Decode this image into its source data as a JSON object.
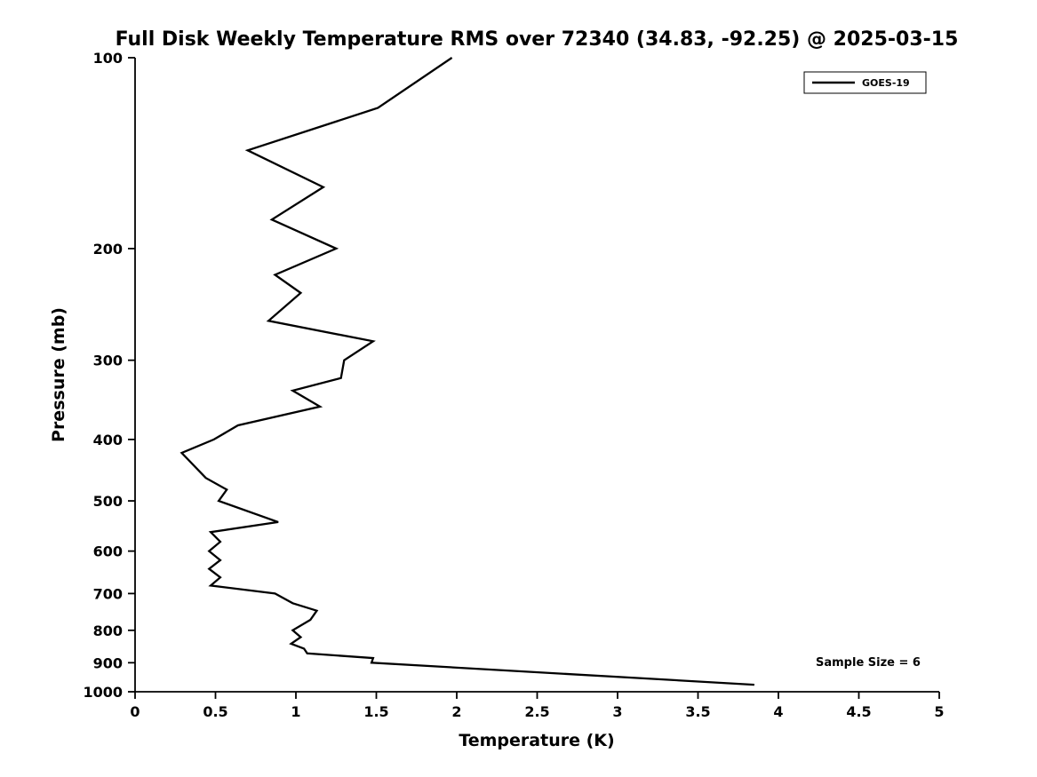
{
  "chart_data": {
    "type": "line",
    "title": "Full Disk Weekly Temperature RMS over 72340 (34.83, -92.25) @ 2025-03-15",
    "xlabel": "Temperature (K)",
    "ylabel": "Pressure (mb)",
    "xlim": [
      0,
      5
    ],
    "ylim": [
      100,
      1000
    ],
    "y_scale": "log",
    "y_inverted": true,
    "grid": false,
    "x_ticks": [
      0,
      0.5,
      1,
      1.5,
      2,
      2.5,
      3,
      3.5,
      4,
      4.5,
      5
    ],
    "x_tick_labels": [
      "0",
      "0.5",
      "1",
      "1.5",
      "2",
      "2.5",
      "3",
      "3.5",
      "4",
      "4.5",
      "5"
    ],
    "y_ticks": [
      100,
      200,
      300,
      400,
      500,
      600,
      700,
      800,
      900,
      1000
    ],
    "y_tick_labels": [
      "100",
      "200",
      "300",
      "400",
      "500",
      "600",
      "700",
      "800",
      "900",
      "1000"
    ],
    "line_color": "#000000",
    "line_width": 2.3,
    "legend": {
      "position": "top-right",
      "entries": [
        {
          "label": "GOES-19",
          "color": "#000000",
          "style": "solid"
        }
      ]
    },
    "annotation": {
      "text": "Sample Size = 6"
    },
    "series": [
      {
        "name": "GOES-19",
        "color": "#000000",
        "pressure_mb": [
          100,
          120,
          140,
          160,
          180,
          200,
          220,
          235,
          260,
          280,
          300,
          320,
          335,
          355,
          380,
          400,
          420,
          460,
          480,
          500,
          540,
          560,
          580,
          600,
          620,
          640,
          660,
          680,
          700,
          725,
          745,
          770,
          800,
          820,
          840,
          855,
          870,
          885,
          900,
          975
        ],
        "rms_k": [
          1.97,
          1.51,
          0.7,
          1.17,
          0.85,
          1.25,
          0.87,
          1.03,
          0.83,
          1.48,
          1.3,
          1.28,
          0.98,
          1.15,
          0.64,
          0.49,
          0.29,
          0.44,
          0.57,
          0.52,
          0.89,
          0.47,
          0.53,
          0.46,
          0.53,
          0.46,
          0.53,
          0.47,
          0.87,
          0.98,
          1.13,
          1.09,
          0.98,
          1.03,
          0.97,
          1.05,
          1.07,
          1.48,
          1.47,
          3.85
        ]
      }
    ]
  }
}
